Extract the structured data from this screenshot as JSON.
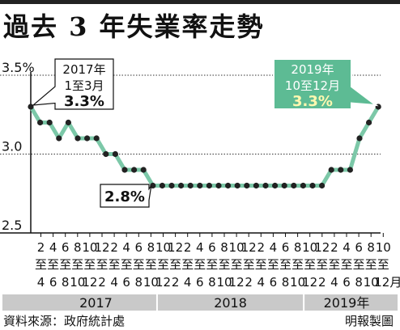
{
  "title": "過去 3 年失業率走勢",
  "source": "資料來源：政府統計處",
  "credit": "明報製圖",
  "colors": {
    "line": "#7cc8a8",
    "marker": "#222222",
    "callout_highlight": "#5dbb94",
    "year_bar": "#c9c9c9"
  },
  "chart_data": {
    "type": "line",
    "title": "過去 3 年失業率走勢",
    "y_ticks": [
      {
        "value": 3.5,
        "label": "3.5%"
      },
      {
        "value": 3.0,
        "label": "3.0"
      },
      {
        "value": 2.5,
        "label": "2.5"
      }
    ],
    "ylim": [
      2.5,
      3.5
    ],
    "x_top": [
      "2",
      "4",
      "6",
      "8",
      "10",
      "12",
      "2",
      "4",
      "6",
      "8",
      "10",
      "12",
      "2",
      "4",
      "6",
      "8",
      "10",
      "12",
      "2",
      "4",
      "6",
      "8",
      "10",
      "12",
      "2",
      "4",
      "6",
      "8",
      "10"
    ],
    "x_mid": "至",
    "x_bottom": [
      "4",
      "6",
      "8",
      "10",
      "12",
      "2",
      "4",
      "6",
      "8",
      "10",
      "12",
      "2",
      "4",
      "6",
      "8",
      "10",
      "12",
      "2",
      "4",
      "6",
      "8",
      "10",
      "12",
      "2",
      "4",
      "6",
      "8",
      "10",
      "12月"
    ],
    "years": [
      {
        "label": "2017",
        "from": 0,
        "to": 10
      },
      {
        "label": "2018",
        "from": 10,
        "to": 22
      },
      {
        "label": "2019年",
        "from": 22,
        "to": 29
      }
    ],
    "values": [
      3.3,
      3.2,
      3.2,
      3.1,
      3.2,
      3.1,
      3.1,
      3.1,
      3.0,
      3.0,
      2.9,
      2.9,
      2.9,
      2.8,
      2.8,
      2.8,
      2.8,
      2.8,
      2.8,
      2.8,
      2.8,
      2.8,
      2.8,
      2.8,
      2.8,
      2.8,
      2.8,
      2.8,
      2.8,
      2.8,
      2.8,
      2.8,
      2.9,
      2.9,
      2.9,
      3.1,
      3.2,
      3.3
    ],
    "annotations": [
      {
        "index": 0,
        "lines": [
          "2017年",
          "1至3月",
          "3.3%"
        ],
        "style": "outline"
      },
      {
        "index": 13,
        "lines": [
          "2.8%"
        ],
        "style": "outline"
      },
      {
        "index": 37,
        "lines": [
          "2019年",
          "10至12月",
          "3.3%"
        ],
        "style": "filled"
      }
    ]
  }
}
